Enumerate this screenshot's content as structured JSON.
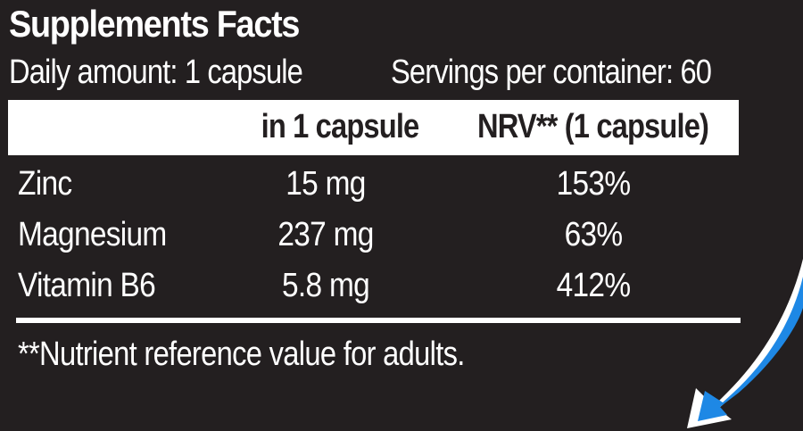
{
  "panel": {
    "title": "Supplements Facts",
    "daily_amount": "Daily amount: 1 capsule",
    "servings": "Servings per container: 60"
  },
  "table": {
    "columns": [
      "",
      "in 1 capsule",
      "NRV** (1 capsule)"
    ],
    "rows": [
      {
        "name": "Zinc",
        "amount": "15 mg",
        "nrv": "153%"
      },
      {
        "name": "Magnesium",
        "amount": "237 mg",
        "nrv": "63%"
      },
      {
        "name": "Vitamin B6",
        "amount": "5.8 mg",
        "nrv": "412%"
      }
    ]
  },
  "footnote": "**Nutrient reference value for adults.",
  "colors": {
    "background": "#231f20",
    "text": "#ffffff",
    "header_band": "#ffffff",
    "accent_blue": "#1e88e5"
  },
  "icons": {
    "decoration": "curved-arrow-icon"
  }
}
